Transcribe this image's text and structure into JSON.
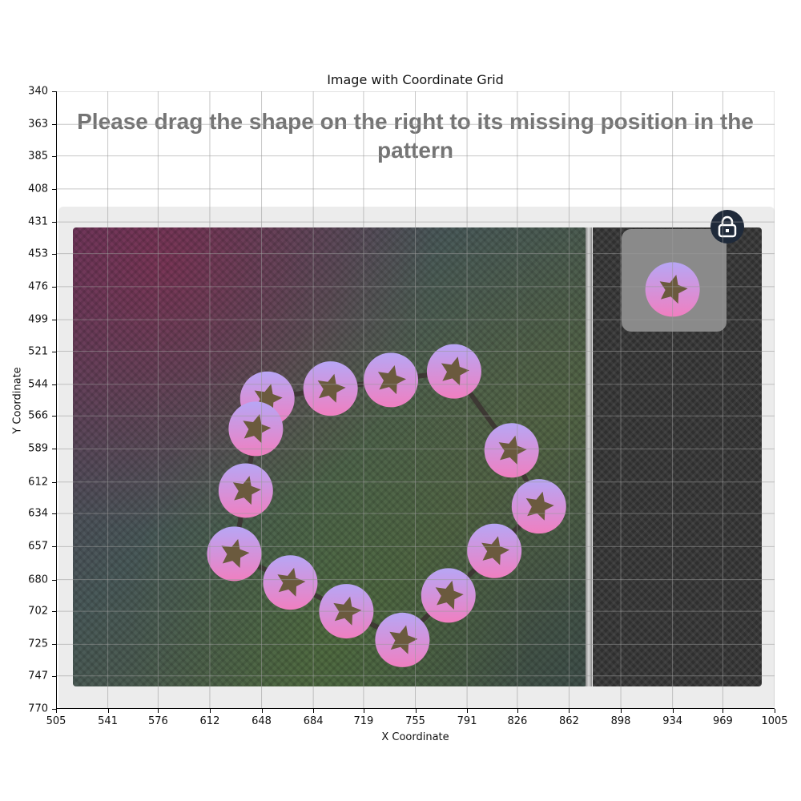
{
  "plot": {
    "title": "Image with Coordinate Grid",
    "x_label": "X Coordinate",
    "y_label": "Y Coordinate",
    "x_ticks": [
      "505",
      "541",
      "576",
      "612",
      "648",
      "684",
      "719",
      "755",
      "791",
      "826",
      "862",
      "898",
      "934",
      "969",
      "1005"
    ],
    "y_ticks": [
      "340",
      "363",
      "385",
      "408",
      "431",
      "453",
      "476",
      "499",
      "521",
      "544",
      "566",
      "589",
      "612",
      "634",
      "657",
      "680",
      "702",
      "725",
      "747",
      "770"
    ],
    "x_range": [
      505,
      1005
    ],
    "y_range": [
      340,
      770
    ],
    "grid": true
  },
  "captcha": {
    "instruction_line1": "Please drag the shape on the right to its missing position in the",
    "instruction_line2": "pattern",
    "lock_icon": "lock-icon",
    "shape_icon": "star-in-circle-icon",
    "shape_colors": {
      "top": "#b7a6f5",
      "bottom": "#f07fc0",
      "star": "#6b5a3e"
    },
    "pattern_shapes": [
      {
        "x": 652,
        "y": 554
      },
      {
        "x": 696,
        "y": 547
      },
      {
        "x": 738,
        "y": 541
      },
      {
        "x": 782,
        "y": 535
      },
      {
        "x": 822,
        "y": 590
      },
      {
        "x": 841,
        "y": 629
      },
      {
        "x": 810,
        "y": 660
      },
      {
        "x": 778,
        "y": 691
      },
      {
        "x": 746,
        "y": 722
      },
      {
        "x": 707,
        "y": 702
      },
      {
        "x": 668,
        "y": 682
      },
      {
        "x": 629,
        "y": 662
      },
      {
        "x": 637,
        "y": 618
      },
      {
        "x": 644,
        "y": 575
      }
    ],
    "draggable_shape": {
      "x": 934,
      "y": 478
    }
  }
}
